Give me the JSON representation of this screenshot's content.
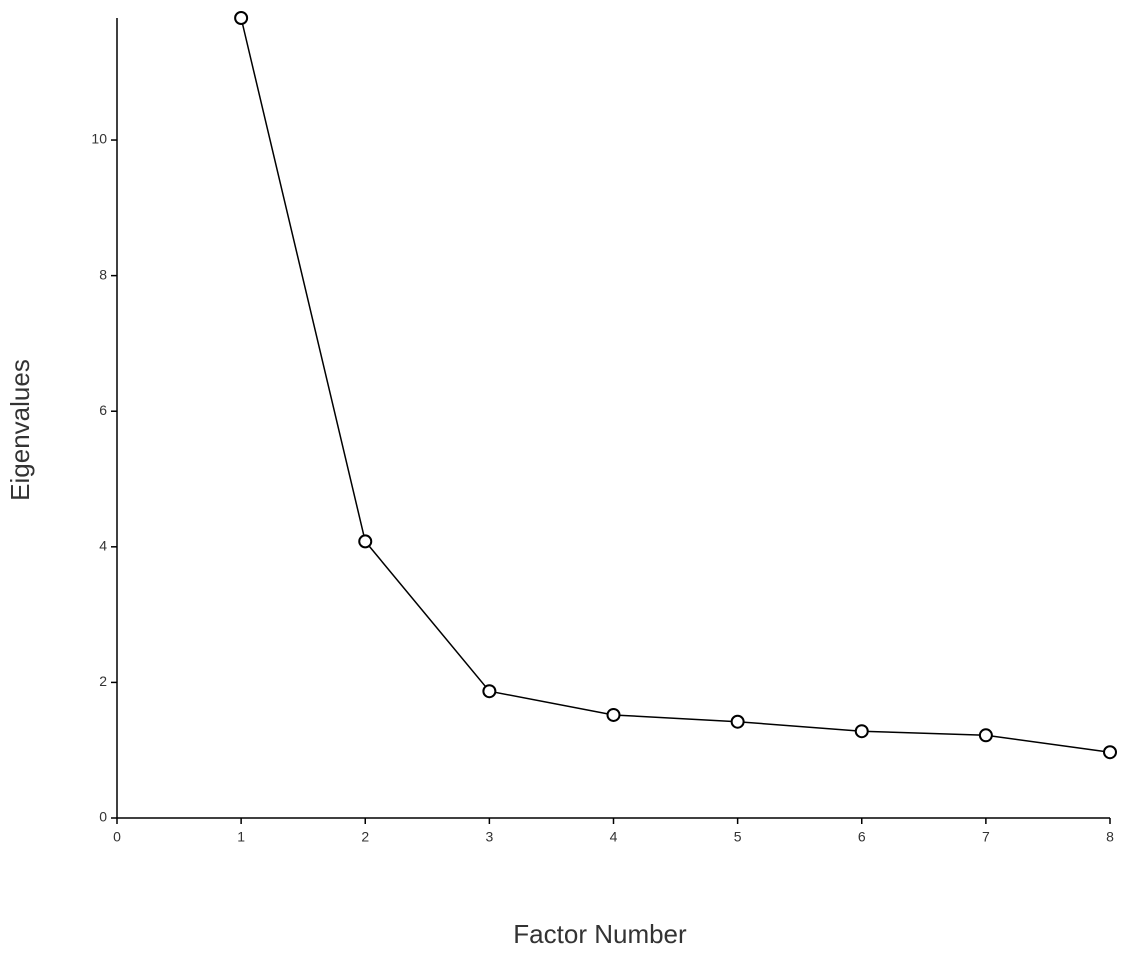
{
  "chart_data": {
    "type": "line",
    "x_label": "Factor Number",
    "y_label": "Eigenvalues",
    "x": [
      1,
      2,
      3,
      4,
      5,
      6,
      7,
      8
    ],
    "values": [
      11.8,
      4.08,
      1.87,
      1.52,
      1.42,
      1.28,
      1.22,
      0.97
    ],
    "color": "#000000",
    "xlim": [
      0,
      8
    ],
    "xticks": [
      0,
      1,
      2,
      3,
      4,
      5,
      6,
      7,
      8
    ],
    "ylim": [
      0,
      11.8
    ],
    "yticks": [
      0,
      2,
      4,
      6,
      8,
      10
    ]
  }
}
